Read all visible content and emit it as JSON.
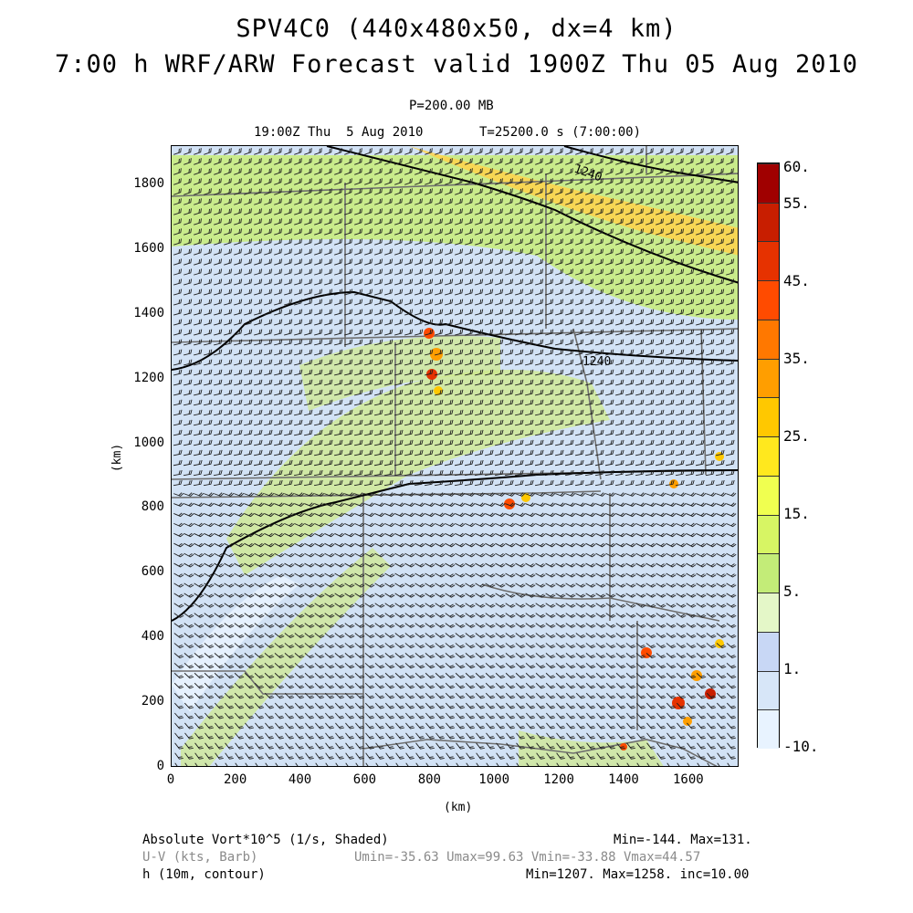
{
  "title_line1": "SPV4C0 (440x480x50, dx=4 km)",
  "title_line2": "7:00 h WRF/ARW Forecast valid 1900Z Thu 05 Aug 2010",
  "level_label": "P=200.00 MB",
  "valid_time": "19:00Z Thu  5 Aug 2010",
  "sim_time": "T=25200.0 s (7:00:00)",
  "x_axis": {
    "label": "(km)",
    "ticks": [
      "0",
      "200",
      "400",
      "600",
      "800",
      "1000",
      "1200",
      "1400",
      "1600"
    ]
  },
  "y_axis": {
    "label": "(km)",
    "ticks": [
      "0",
      "200",
      "400",
      "600",
      "800",
      "1000",
      "1200",
      "1400",
      "1600",
      "1800"
    ]
  },
  "contour_labels": [
    "1240",
    "1240"
  ],
  "colorbar": {
    "labels": [
      "60.",
      "55.",
      "45.",
      "35.",
      "25.",
      "15.",
      "5.",
      "1.",
      "-10."
    ],
    "colors": [
      "#a00000",
      "#c81e00",
      "#e63200",
      "#ff4b00",
      "#ff7800",
      "#ff9e00",
      "#ffc800",
      "#ffe81e",
      "#f0ff50",
      "#d7f564",
      "#c3ec78",
      "#e4f7c8",
      "#c8d7f5",
      "#d7e6f8",
      "#e8f3ff"
    ]
  },
  "footer": {
    "field1": "Absolute Vort*10^5 (1/s, Shaded)",
    "field1_stats": "Min=-144. Max=131.",
    "field2": "U-V (kts, Barb)",
    "field2_stats": "Umin=-35.63 Umax=99.63 Vmin=-33.88 Vmax=44.57",
    "field3": "h (10m, contour)",
    "field3_stats": "Min=1207. Max=1258. inc=10.00"
  }
}
